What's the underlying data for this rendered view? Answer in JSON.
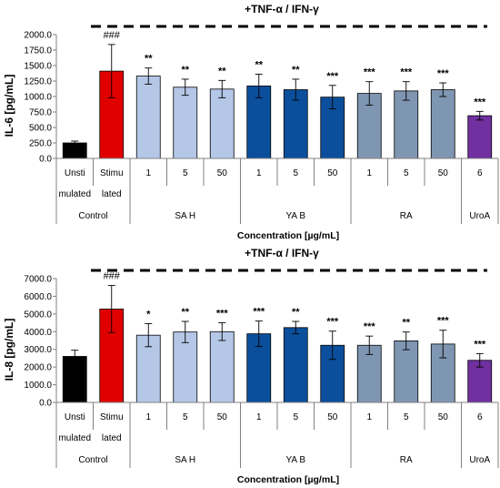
{
  "chart_data": [
    {
      "type": "bar",
      "treatment_label": "+TNF-α / IFN-γ",
      "ylabel": "IL-6 [pg/mL]",
      "xlabel": "Concentration [µg/mL]",
      "ylim": [
        0,
        2000
      ],
      "yticks": [
        "0.0",
        "250.0",
        "500.0",
        "750.0",
        "1000.0",
        "1250.0",
        "1500.0",
        "1750.0",
        "2000.0"
      ],
      "categories": [
        [
          "Unsti",
          "mulated"
        ],
        [
          "Stimu",
          "lated"
        ],
        [
          "1"
        ],
        [
          "5"
        ],
        [
          "50"
        ],
        [
          "1"
        ],
        [
          "5"
        ],
        [
          "50"
        ],
        [
          "1"
        ],
        [
          "5"
        ],
        [
          "50"
        ],
        [
          "6"
        ]
      ],
      "values": [
        250,
        1410,
        1330,
        1150,
        1120,
        1170,
        1110,
        990,
        1050,
        1090,
        1110,
        690
      ],
      "errors": [
        30,
        430,
        130,
        130,
        140,
        190,
        170,
        190,
        190,
        150,
        110,
        70
      ],
      "colors": [
        "#000000",
        "#e00000",
        "#b4c7e7",
        "#b4c7e7",
        "#b4c7e7",
        "#0b4f9c",
        "#0b4f9c",
        "#0b4f9c",
        "#7f96b2",
        "#7f96b2",
        "#7f96b2",
        "#7030a0"
      ],
      "significance": [
        "",
        "###",
        "**",
        "**",
        "**",
        "**",
        "**",
        "***",
        "***",
        "***",
        "***",
        "***"
      ],
      "groups": [
        {
          "label": "Control",
          "start": 0,
          "end": 1
        },
        {
          "label": "SA H",
          "start": 2,
          "end": 4
        },
        {
          "label": "YA B",
          "start": 5,
          "end": 7
        },
        {
          "label": "RA",
          "start": 8,
          "end": 10
        },
        {
          "label": "UroA",
          "start": 11,
          "end": 11
        }
      ]
    },
    {
      "type": "bar",
      "treatment_label": "+TNF-α / IFN-γ",
      "ylabel": "IL-8 [pg/mL]",
      "xlabel": "Concentration [µg/mL]",
      "ylim": [
        0,
        7000
      ],
      "yticks": [
        "0.0",
        "1000.0",
        "2000.0",
        "3000.0",
        "4000.0",
        "5000.0",
        "6000.0",
        "7000.0"
      ],
      "categories": [
        [
          "Unsti",
          "mulated"
        ],
        [
          "Stimu",
          "lated"
        ],
        [
          "1"
        ],
        [
          "5"
        ],
        [
          "50"
        ],
        [
          "1"
        ],
        [
          "5"
        ],
        [
          "50"
        ],
        [
          "1"
        ],
        [
          "5"
        ],
        [
          "50"
        ],
        [
          "6"
        ]
      ],
      "values": [
        2600,
        5280,
        3800,
        3980,
        4000,
        3880,
        4230,
        3230,
        3230,
        3480,
        3300,
        2380
      ],
      "errors": [
        350,
        1330,
        650,
        600,
        500,
        720,
        350,
        800,
        520,
        500,
        780,
        380
      ],
      "colors": [
        "#000000",
        "#e00000",
        "#b4c7e7",
        "#b4c7e7",
        "#b4c7e7",
        "#0b4f9c",
        "#0b4f9c",
        "#0b4f9c",
        "#7f96b2",
        "#7f96b2",
        "#7f96b2",
        "#7030a0"
      ],
      "significance": [
        "",
        "###",
        "*",
        "**",
        "***",
        "***",
        "**",
        "***",
        "***",
        "**",
        "***",
        "***"
      ],
      "groups": [
        {
          "label": "Control",
          "start": 0,
          "end": 1
        },
        {
          "label": "SA H",
          "start": 2,
          "end": 4
        },
        {
          "label": "YA B",
          "start": 5,
          "end": 7
        },
        {
          "label": "RA",
          "start": 8,
          "end": 10
        },
        {
          "label": "UroA",
          "start": 11,
          "end": 11
        }
      ]
    }
  ]
}
